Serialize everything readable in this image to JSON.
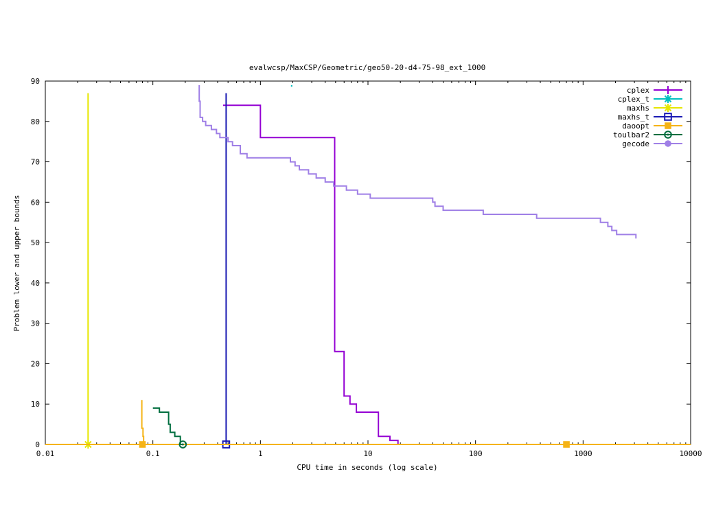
{
  "chart_data": {
    "type": "line",
    "title": "evalwcsp/MaxCSP/Geometric/geo50-20-d4-75-98_ext_1000",
    "xlabel": "CPU time in seconds (log scale)",
    "ylabel": "Problem lower and upper bounds",
    "x_scale": "log",
    "xlim": [
      0.01,
      10000
    ],
    "ylim": [
      0,
      90
    ],
    "x_ticks": [
      0.01,
      0.1,
      1,
      10,
      100,
      1000,
      10000
    ],
    "x_tick_labels": [
      "0.01",
      "0.1",
      "1",
      "10",
      "100",
      "1000",
      "10000"
    ],
    "y_ticks": [
      0,
      10,
      20,
      30,
      40,
      50,
      60,
      70,
      80,
      90
    ],
    "y_tick_labels": [
      "0",
      "10",
      "20",
      "30",
      "40",
      "50",
      "60",
      "70",
      "80",
      "90"
    ],
    "grid": false,
    "legend_position": "top-right",
    "series": [
      {
        "name": "cplex",
        "color": "#9400d3",
        "marker": "plus",
        "points": [
          [
            0.45,
            84
          ],
          [
            1.0,
            84
          ],
          [
            1.0,
            76
          ],
          [
            4.9,
            76
          ],
          [
            4.9,
            23
          ],
          [
            6.0,
            23
          ],
          [
            6.0,
            12
          ],
          [
            6.8,
            12
          ],
          [
            6.8,
            10
          ],
          [
            7.8,
            10
          ],
          [
            7.8,
            8
          ],
          [
            12.5,
            8
          ],
          [
            12.5,
            2
          ],
          [
            16,
            2
          ],
          [
            16,
            1
          ],
          [
            19,
            1
          ],
          [
            19,
            0
          ]
        ],
        "marker_points": []
      },
      {
        "name": "cplex_t",
        "color": "#00bfbf",
        "marker": "star",
        "points": [
          [
            1.95,
            89
          ],
          [
            1.95,
            88.6
          ]
        ],
        "marker_points": []
      },
      {
        "name": "maxhs",
        "color": "#e6e600",
        "marker": "star",
        "points": [
          [
            0.025,
            87
          ],
          [
            0.025,
            0
          ]
        ],
        "marker_points": [
          [
            0.025,
            0
          ]
        ]
      },
      {
        "name": "maxhs_t",
        "color": "#1a1ab3",
        "marker": "open-square",
        "points": [
          [
            0.48,
            87
          ],
          [
            0.48,
            0
          ]
        ],
        "marker_points": [
          [
            0.48,
            0
          ]
        ]
      },
      {
        "name": "daoopt",
        "color": "#f5b316",
        "marker": "filled-square",
        "points": [
          [
            0.01,
            0
          ],
          [
            10000,
            0
          ]
        ],
        "extra_lines": [
          [
            [
              0.079,
              11
            ],
            [
              0.079,
              4
            ],
            [
              0.081,
              4
            ],
            [
              0.081,
              2
            ],
            [
              0.082,
              2
            ],
            [
              0.082,
              0
            ]
          ]
        ],
        "marker_points": [
          [
            0.08,
            0
          ],
          [
            700,
            0
          ]
        ]
      },
      {
        "name": "toulbar2",
        "color": "#006e3f",
        "marker": "open-circle",
        "points": [
          [
            0.1,
            9
          ],
          [
            0.115,
            9
          ],
          [
            0.115,
            8
          ],
          [
            0.14,
            8
          ],
          [
            0.14,
            5
          ],
          [
            0.145,
            5
          ],
          [
            0.145,
            3
          ],
          [
            0.16,
            3
          ],
          [
            0.16,
            2
          ],
          [
            0.18,
            2
          ],
          [
            0.18,
            0
          ],
          [
            0.19,
            0
          ]
        ],
        "marker_points": [
          [
            0.19,
            0
          ]
        ]
      },
      {
        "name": "gecode",
        "color": "#9f7fe6",
        "marker": "filled-circle",
        "points": [
          [
            0.27,
            89
          ],
          [
            0.27,
            85
          ],
          [
            0.275,
            85
          ],
          [
            0.275,
            81
          ],
          [
            0.29,
            81
          ],
          [
            0.29,
            80
          ],
          [
            0.31,
            80
          ],
          [
            0.31,
            79
          ],
          [
            0.35,
            79
          ],
          [
            0.35,
            78
          ],
          [
            0.39,
            78
          ],
          [
            0.39,
            77
          ],
          [
            0.42,
            77
          ],
          [
            0.42,
            76
          ],
          [
            0.5,
            76
          ],
          [
            0.5,
            75
          ],
          [
            0.55,
            75
          ],
          [
            0.55,
            74
          ],
          [
            0.65,
            74
          ],
          [
            0.65,
            72
          ],
          [
            0.75,
            72
          ],
          [
            0.75,
            71
          ],
          [
            1.2,
            71
          ],
          [
            1.9,
            71
          ],
          [
            1.9,
            70
          ],
          [
            2.1,
            70
          ],
          [
            2.1,
            69
          ],
          [
            2.3,
            69
          ],
          [
            2.3,
            68
          ],
          [
            2.8,
            68
          ],
          [
            2.8,
            67
          ],
          [
            3.3,
            67
          ],
          [
            3.3,
            66
          ],
          [
            4.0,
            66
          ],
          [
            4.0,
            65
          ],
          [
            4.8,
            65
          ],
          [
            4.8,
            64
          ],
          [
            6.3,
            64
          ],
          [
            6.3,
            63
          ],
          [
            8.0,
            63
          ],
          [
            8.0,
            62
          ],
          [
            10.5,
            62
          ],
          [
            10.5,
            61
          ],
          [
            40,
            61
          ],
          [
            40,
            60
          ],
          [
            42,
            60
          ],
          [
            42,
            59
          ],
          [
            50,
            59
          ],
          [
            50,
            58
          ],
          [
            118,
            58
          ],
          [
            118,
            57
          ],
          [
            370,
            57
          ],
          [
            370,
            56
          ],
          [
            1450,
            56
          ],
          [
            1450,
            55
          ],
          [
            1700,
            55
          ],
          [
            1700,
            54
          ],
          [
            1850,
            54
          ],
          [
            1850,
            53
          ],
          [
            2050,
            53
          ],
          [
            2050,
            52
          ],
          [
            3100,
            52
          ],
          [
            3100,
            51
          ]
        ],
        "marker_points": []
      }
    ]
  }
}
